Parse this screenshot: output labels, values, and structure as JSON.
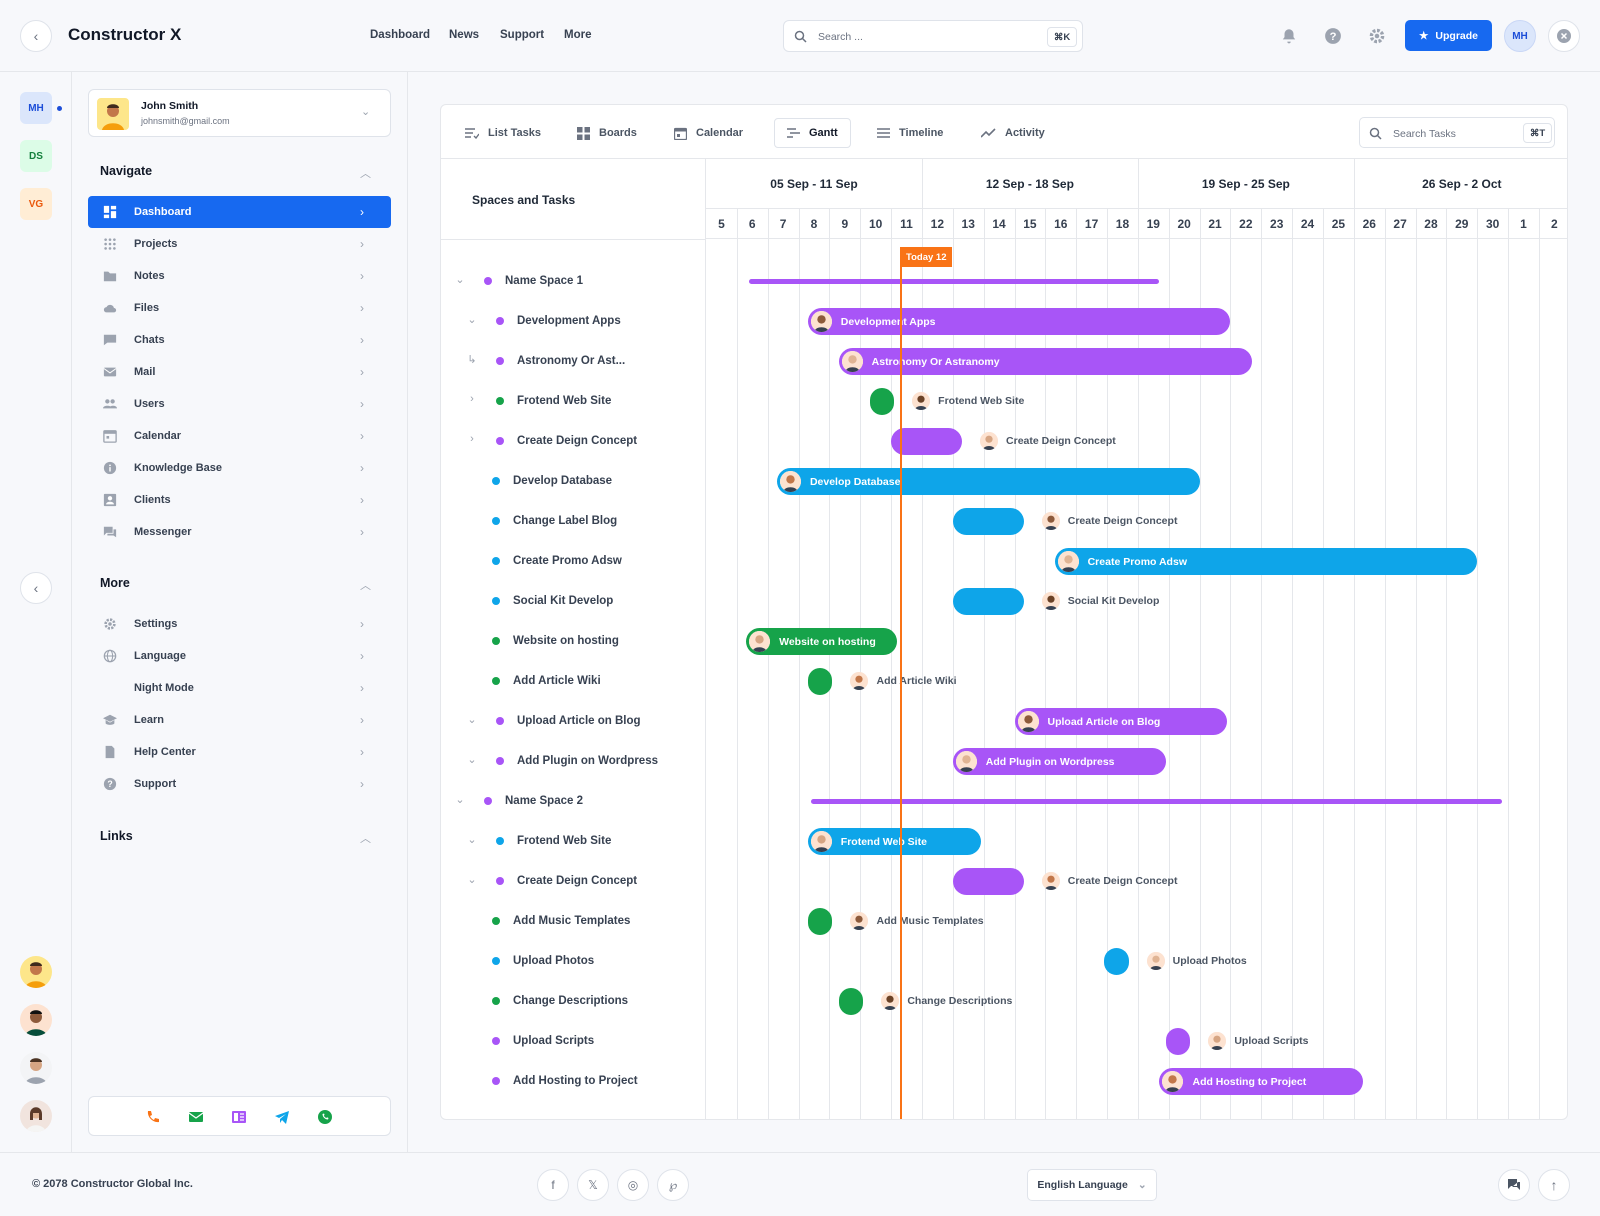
{
  "app": {
    "title": "Constructor X"
  },
  "topnav": [
    {
      "label": "Dashboard"
    },
    {
      "label": "News"
    },
    {
      "label": "Support"
    },
    {
      "label": "More"
    }
  ],
  "search": {
    "placeholder": "Search ...",
    "shortcut": "⌘K"
  },
  "header": {
    "upgrade_label": "Upgrade",
    "user_initials": "MH"
  },
  "workspaces": [
    {
      "initials": "MH",
      "color": "#1d4ed8",
      "bg": "#dbe6fb"
    },
    {
      "initials": "DS",
      "color": "#15803d",
      "bg": "#dcfce7"
    },
    {
      "initials": "VG",
      "color": "#ea580c",
      "bg": "#ffedd5"
    }
  ],
  "user": {
    "name": "John Smith",
    "email": "johnsmith@gmail.com"
  },
  "sidebar": {
    "navigate_title": "Navigate",
    "more_title": "More",
    "links_title": "Links",
    "navigate": [
      {
        "label": "Dashboard",
        "icon": "dashboard-icon"
      },
      {
        "label": "Projects",
        "icon": "grid-icon"
      },
      {
        "label": "Notes",
        "icon": "folder-icon"
      },
      {
        "label": "Files",
        "icon": "cloud-icon"
      },
      {
        "label": "Chats",
        "icon": "chat-icon"
      },
      {
        "label": "Mail",
        "icon": "mail-icon"
      },
      {
        "label": "Users",
        "icon": "users-icon"
      },
      {
        "label": "Calendar",
        "icon": "calendar-icon"
      },
      {
        "label": "Knowledge Base",
        "icon": "info-icon"
      },
      {
        "label": "Clients",
        "icon": "contact-icon"
      },
      {
        "label": "Messenger",
        "icon": "messenger-icon"
      }
    ],
    "more": [
      {
        "label": "Settings",
        "icon": "gear-icon"
      },
      {
        "label": "Language",
        "icon": "globe-icon"
      },
      {
        "label": "Night Mode",
        "icon": "moon-icon"
      },
      {
        "label": "Learn",
        "icon": "school-icon"
      },
      {
        "label": "Help Center",
        "icon": "document-icon"
      },
      {
        "label": "Support",
        "icon": "help-icon"
      }
    ]
  },
  "tabs": [
    {
      "label": "List Tasks",
      "icon": "list-icon"
    },
    {
      "label": "Boards",
      "icon": "boards-icon"
    },
    {
      "label": "Calendar",
      "icon": "calendar-icon"
    },
    {
      "label": "Gantt",
      "icon": "gantt-icon"
    },
    {
      "label": "Timeline",
      "icon": "timeline-icon"
    },
    {
      "label": "Activity",
      "icon": "activity-icon"
    }
  ],
  "task_search": {
    "placeholder": "Search Tasks",
    "shortcut": "⌘T"
  },
  "gantt": {
    "spaces_header": "Spaces and Tasks",
    "weeks": [
      "05 Sep - 11 Sep",
      "12 Sep - 18 Sep",
      "19 Sep - 25 Sep",
      "26 Sep - 2 Oct"
    ],
    "days": [
      "5",
      "6",
      "7",
      "8",
      "9",
      "10",
      "11",
      "12",
      "13",
      "14",
      "15",
      "16",
      "17",
      "18",
      "19",
      "20",
      "21",
      "22",
      "23",
      "24",
      "25",
      "26",
      "27",
      "28",
      "29",
      "30",
      "1",
      "2"
    ],
    "today_label": "Today 12",
    "colors": {
      "purple": "#a855f7",
      "blue": "#0ea5e9",
      "green": "#16a34a",
      "today": "#f97316",
      "accent": "#1769f0"
    },
    "rows": [
      {
        "label": "Name Space 1",
        "dot": "purple",
        "chevron": "down",
        "level": 0,
        "start": 6.4,
        "end": 19.7,
        "kind": "group"
      },
      {
        "label": "Development Apps",
        "dot": "purple",
        "chevron": "down",
        "level": 1,
        "start": 8.3,
        "end": 22.0,
        "kind": "bar",
        "bar_label": "Development Apps"
      },
      {
        "label": "Astronomy Or Ast...",
        "dot": "purple",
        "chevron": "sub",
        "level": 1,
        "start": 9.3,
        "end": 22.7,
        "kind": "bar",
        "bar_label": "Astronomy Or Astranomy"
      },
      {
        "label": "Frotend Web Site",
        "dot": "green",
        "chevron": "right",
        "level": 1,
        "start": 10.3,
        "end": 11.1,
        "kind": "pill",
        "pill_label": "Frotend Web Site"
      },
      {
        "label": "Create Deign Concept",
        "dot": "purple",
        "chevron": "right",
        "level": 1,
        "start": 11.0,
        "end": 13.3,
        "kind": "pill",
        "pill_label": "Create Deign Concept"
      },
      {
        "label": "Develop Database",
        "dot": "blue",
        "chevron": "",
        "level": 2,
        "start": 7.3,
        "end": 21.0,
        "kind": "bar",
        "bar_label": "Develop Database"
      },
      {
        "label": "Change Label Blog",
        "dot": "blue",
        "chevron": "",
        "level": 2,
        "start": 13.0,
        "end": 15.3,
        "kind": "pill",
        "pill_label": "Create Deign Concept"
      },
      {
        "label": "Create Promo Adsw",
        "dot": "blue",
        "chevron": "",
        "level": 2,
        "start": 16.3,
        "end": 30.0,
        "kind": "bar",
        "bar_label": "Create Promo Adsw"
      },
      {
        "label": "Social Kit Develop",
        "dot": "blue",
        "chevron": "",
        "level": 2,
        "start": 13.0,
        "end": 15.3,
        "kind": "pill",
        "pill_label": "Social Kit Develop"
      },
      {
        "label": "Website on hosting",
        "dot": "green",
        "chevron": "",
        "level": 2,
        "start": 6.3,
        "end": 11.2,
        "kind": "bar",
        "bar_label": "Website on hosting"
      },
      {
        "label": "Add Article Wiki",
        "dot": "green",
        "chevron": "",
        "level": 2,
        "start": 8.3,
        "end": 9.1,
        "kind": "pill",
        "pill_label": "Add Article Wiki"
      },
      {
        "label": "Upload Article on Blog",
        "dot": "purple",
        "chevron": "down",
        "level": 1,
        "start": 15.0,
        "end": 21.9,
        "kind": "bar",
        "bar_label": "Upload Article on Blog"
      },
      {
        "label": "Add Plugin on Wordpress",
        "dot": "purple",
        "chevron": "down",
        "level": 1,
        "start": 13.0,
        "end": 19.9,
        "kind": "bar",
        "bar_label": "Add Plugin on Wordpress"
      },
      {
        "label": "Name Space 2",
        "dot": "purple",
        "chevron": "down",
        "level": 0,
        "start": 8.4,
        "end": 30.8,
        "kind": "group"
      },
      {
        "label": "Frotend Web Site",
        "dot": "blue",
        "chevron": "down",
        "level": 1,
        "start": 8.3,
        "end": 13.9,
        "kind": "bar",
        "bar_label": "Frotend Web Site"
      },
      {
        "label": "Create Deign Concept",
        "dot": "purple",
        "chevron": "down",
        "level": 1,
        "start": 13.0,
        "end": 15.3,
        "kind": "pill",
        "pill_label": "Create Deign Concept"
      },
      {
        "label": "Add Music Templates",
        "dot": "green",
        "chevron": "",
        "level": 2,
        "start": 8.3,
        "end": 9.1,
        "kind": "pill",
        "pill_label": "Add Music Templates"
      },
      {
        "label": "Upload Photos",
        "dot": "blue",
        "chevron": "",
        "level": 2,
        "start": 17.9,
        "end": 18.7,
        "kind": "pill",
        "pill_label": "Upload Photos"
      },
      {
        "label": "Change Descriptions",
        "dot": "green",
        "chevron": "",
        "level": 2,
        "start": 9.3,
        "end": 10.1,
        "kind": "pill",
        "pill_label": "Change Descriptions"
      },
      {
        "label": "Upload Scripts",
        "dot": "purple",
        "chevron": "",
        "level": 2,
        "start": 19.9,
        "end": 20.7,
        "kind": "pill",
        "pill_label": "Upload Scripts"
      },
      {
        "label": "Add Hosting to Project",
        "dot": "purple",
        "chevron": "",
        "level": 2,
        "start": 19.7,
        "end": 26.3,
        "kind": "bar",
        "bar_label": "Add Hosting to Project"
      }
    ]
  },
  "footer": {
    "copyright": "© 2078 Constructor Global Inc.",
    "language": "English Language"
  },
  "social": [
    {
      "icon": "facebook-icon",
      "glyph": "f"
    },
    {
      "icon": "x-icon",
      "glyph": "𝕏"
    },
    {
      "icon": "instagram-icon",
      "glyph": "◎"
    },
    {
      "icon": "pinterest-icon",
      "glyph": "℘"
    }
  ]
}
